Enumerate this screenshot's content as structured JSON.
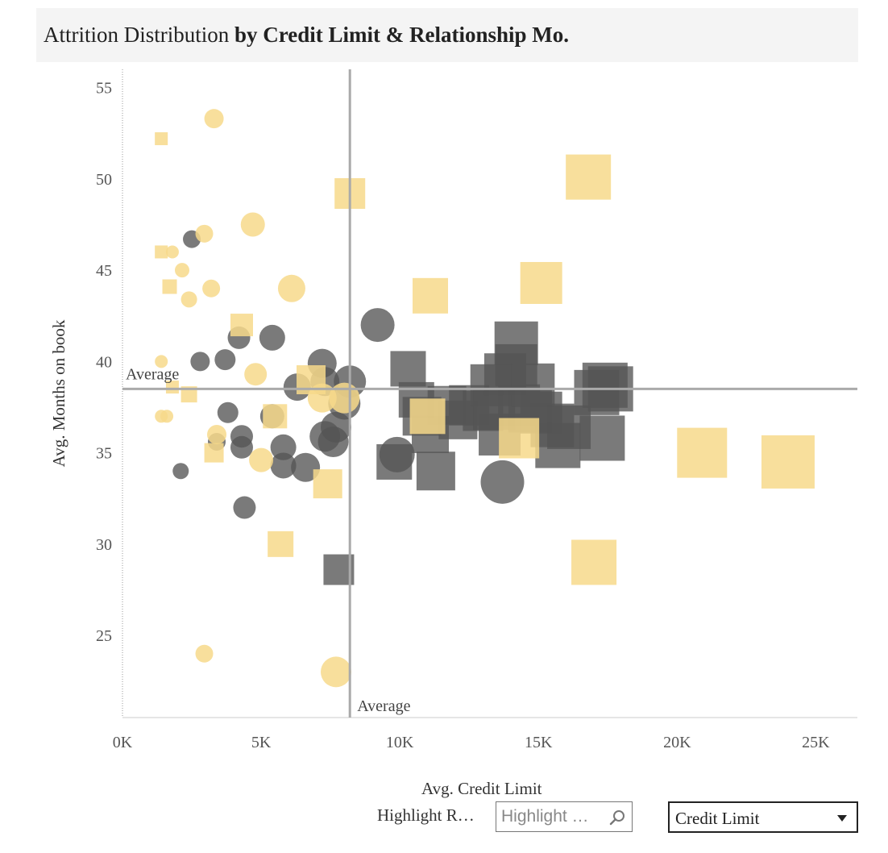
{
  "title": {
    "plain": "Attrition Distribution ",
    "bold": "by Credit Limit & Relationship Mo."
  },
  "controls": {
    "highlight_label": "Highlight R…",
    "highlight_placeholder": "Highlight …",
    "select_value": "Credit Limit"
  },
  "colors": {
    "existing": "#555555",
    "attrited": "#f7d98b",
    "reference": "#aaaaaa"
  },
  "chart_data": {
    "type": "scatter",
    "title": "Attrition Distribution by Credit Limit & Relationship Mo.",
    "xlabel": "Avg. Credit Limit",
    "ylabel": "Avg. Months on book",
    "xlim": [
      0,
      26500
    ],
    "ylim": [
      20.5,
      56
    ],
    "xticks": [
      0,
      5000,
      10000,
      15000,
      20000,
      25000
    ],
    "xtick_labels": [
      "0K",
      "5K",
      "10K",
      "15K",
      "20K",
      "25K"
    ],
    "yticks": [
      25,
      30,
      35,
      40,
      45,
      50,
      55
    ],
    "grid": false,
    "reference_lines": {
      "x": {
        "value": 8200,
        "label": "Average"
      },
      "y": {
        "value": 38.5,
        "label": "Average"
      }
    },
    "series": [
      {
        "color": "#555555",
        "points": [
          {
            "x": 2500,
            "y": 46.7,
            "size": 11,
            "shape": "circle"
          },
          {
            "x": 2800,
            "y": 40.0,
            "size": 12,
            "shape": "circle"
          },
          {
            "x": 3700,
            "y": 40.1,
            "size": 13,
            "shape": "circle"
          },
          {
            "x": 4200,
            "y": 41.3,
            "size": 14,
            "shape": "circle"
          },
          {
            "x": 5400,
            "y": 41.3,
            "size": 16,
            "shape": "circle"
          },
          {
            "x": 9200,
            "y": 42.0,
            "size": 21,
            "shape": "circle"
          },
          {
            "x": 3800,
            "y": 37.2,
            "size": 13,
            "shape": "circle"
          },
          {
            "x": 4300,
            "y": 35.9,
            "size": 14,
            "shape": "circle"
          },
          {
            "x": 4300,
            "y": 35.3,
            "size": 14,
            "shape": "circle"
          },
          {
            "x": 3400,
            "y": 35.6,
            "size": 11,
            "shape": "circle"
          },
          {
            "x": 2100,
            "y": 34.0,
            "size": 10,
            "shape": "circle"
          },
          {
            "x": 4400,
            "y": 32.0,
            "size": 14,
            "shape": "circle"
          },
          {
            "x": 5800,
            "y": 35.3,
            "size": 16,
            "shape": "circle"
          },
          {
            "x": 5800,
            "y": 34.3,
            "size": 16,
            "shape": "circle"
          },
          {
            "x": 6600,
            "y": 34.2,
            "size": 18,
            "shape": "circle"
          },
          {
            "x": 7300,
            "y": 35.9,
            "size": 19,
            "shape": "circle"
          },
          {
            "x": 7600,
            "y": 35.6,
            "size": 19,
            "shape": "circle"
          },
          {
            "x": 7700,
            "y": 36.4,
            "size": 19,
            "shape": "circle"
          },
          {
            "x": 6300,
            "y": 38.6,
            "size": 17,
            "shape": "circle"
          },
          {
            "x": 7200,
            "y": 39.9,
            "size": 18,
            "shape": "circle"
          },
          {
            "x": 7300,
            "y": 38.9,
            "size": 18,
            "shape": "circle"
          },
          {
            "x": 8000,
            "y": 37.7,
            "size": 20,
            "shape": "circle"
          },
          {
            "x": 8200,
            "y": 38.9,
            "size": 20,
            "shape": "circle"
          },
          {
            "x": 5400,
            "y": 37.0,
            "size": 15,
            "shape": "circle"
          },
          {
            "x": 9900,
            "y": 34.9,
            "size": 22,
            "shape": "circle"
          },
          {
            "x": 13700,
            "y": 33.4,
            "size": 27,
            "shape": "circle"
          },
          {
            "x": 10300,
            "y": 39.6,
            "size": 22,
            "shape": "square"
          },
          {
            "x": 10600,
            "y": 37.9,
            "size": 22,
            "shape": "square"
          },
          {
            "x": 10800,
            "y": 37.0,
            "size": 24,
            "shape": "square"
          },
          {
            "x": 11100,
            "y": 36.0,
            "size": 23,
            "shape": "square"
          },
          {
            "x": 11300,
            "y": 34.0,
            "size": 24,
            "shape": "square"
          },
          {
            "x": 9800,
            "y": 34.5,
            "size": 22,
            "shape": "square"
          },
          {
            "x": 11700,
            "y": 37.6,
            "size": 24,
            "shape": "square"
          },
          {
            "x": 12100,
            "y": 36.8,
            "size": 24,
            "shape": "square"
          },
          {
            "x": 12500,
            "y": 37.6,
            "size": 25,
            "shape": "square"
          },
          {
            "x": 13000,
            "y": 37.3,
            "size": 25,
            "shape": "square"
          },
          {
            "x": 13300,
            "y": 38.7,
            "size": 26,
            "shape": "square"
          },
          {
            "x": 13400,
            "y": 37.4,
            "size": 26,
            "shape": "square"
          },
          {
            "x": 13600,
            "y": 36.0,
            "size": 26,
            "shape": "square"
          },
          {
            "x": 13800,
            "y": 39.3,
            "size": 26,
            "shape": "square"
          },
          {
            "x": 14200,
            "y": 39.8,
            "size": 26,
            "shape": "square"
          },
          {
            "x": 14200,
            "y": 41.0,
            "size": 27,
            "shape": "square"
          },
          {
            "x": 14300,
            "y": 37.6,
            "size": 26,
            "shape": "square"
          },
          {
            "x": 14700,
            "y": 37.3,
            "size": 27,
            "shape": "square"
          },
          {
            "x": 14800,
            "y": 38.7,
            "size": 27,
            "shape": "square"
          },
          {
            "x": 15100,
            "y": 37.2,
            "size": 26,
            "shape": "square"
          },
          {
            "x": 15500,
            "y": 36.5,
            "size": 27,
            "shape": "square"
          },
          {
            "x": 15700,
            "y": 35.4,
            "size": 28,
            "shape": "square"
          },
          {
            "x": 16100,
            "y": 36.4,
            "size": 27,
            "shape": "square"
          },
          {
            "x": 17100,
            "y": 38.3,
            "size": 28,
            "shape": "square"
          },
          {
            "x": 17300,
            "y": 35.8,
            "size": 28,
            "shape": "square"
          },
          {
            "x": 17400,
            "y": 38.7,
            "size": 28,
            "shape": "square"
          },
          {
            "x": 17600,
            "y": 38.5,
            "size": 28,
            "shape": "square"
          },
          {
            "x": 7800,
            "y": 28.6,
            "size": 19,
            "shape": "square"
          }
        ]
      },
      {
        "color": "#f7d98b",
        "points": [
          {
            "x": 3300,
            "y": 53.3,
            "size": 12,
            "shape": "circle"
          },
          {
            "x": 1400,
            "y": 52.2,
            "size": 8,
            "shape": "square"
          },
          {
            "x": 8200,
            "y": 49.2,
            "size": 19,
            "shape": "square"
          },
          {
            "x": 16800,
            "y": 50.1,
            "size": 28,
            "shape": "square"
          },
          {
            "x": 4700,
            "y": 47.5,
            "size": 15,
            "shape": "circle"
          },
          {
            "x": 2950,
            "y": 47.0,
            "size": 11,
            "shape": "circle"
          },
          {
            "x": 1400,
            "y": 46.0,
            "size": 8,
            "shape": "square"
          },
          {
            "x": 1800,
            "y": 46.0,
            "size": 8,
            "shape": "circle"
          },
          {
            "x": 2150,
            "y": 45.0,
            "size": 9,
            "shape": "circle"
          },
          {
            "x": 1700,
            "y": 44.1,
            "size": 9,
            "shape": "square"
          },
          {
            "x": 3200,
            "y": 44.0,
            "size": 11,
            "shape": "circle"
          },
          {
            "x": 2400,
            "y": 43.4,
            "size": 10,
            "shape": "circle"
          },
          {
            "x": 6100,
            "y": 44.0,
            "size": 17,
            "shape": "circle"
          },
          {
            "x": 11100,
            "y": 43.6,
            "size": 22,
            "shape": "square"
          },
          {
            "x": 15100,
            "y": 44.3,
            "size": 26,
            "shape": "square"
          },
          {
            "x": 4300,
            "y": 42.0,
            "size": 14,
            "shape": "square"
          },
          {
            "x": 1400,
            "y": 40.0,
            "size": 8,
            "shape": "circle"
          },
          {
            "x": 4800,
            "y": 39.3,
            "size": 14,
            "shape": "circle"
          },
          {
            "x": 1800,
            "y": 38.6,
            "size": 8,
            "shape": "square"
          },
          {
            "x": 2400,
            "y": 38.2,
            "size": 10,
            "shape": "square"
          },
          {
            "x": 6800,
            "y": 39.0,
            "size": 18,
            "shape": "square"
          },
          {
            "x": 7200,
            "y": 38.0,
            "size": 18,
            "shape": "circle"
          },
          {
            "x": 8000,
            "y": 38.0,
            "size": 19,
            "shape": "circle"
          },
          {
            "x": 5500,
            "y": 37.0,
            "size": 15,
            "shape": "square"
          },
          {
            "x": 1400,
            "y": 37.0,
            "size": 8,
            "shape": "circle"
          },
          {
            "x": 1600,
            "y": 37.0,
            "size": 8,
            "shape": "circle"
          },
          {
            "x": 3400,
            "y": 36.0,
            "size": 12,
            "shape": "circle"
          },
          {
            "x": 3300,
            "y": 35.0,
            "size": 12,
            "shape": "square"
          },
          {
            "x": 5000,
            "y": 34.6,
            "size": 15,
            "shape": "circle"
          },
          {
            "x": 7400,
            "y": 33.3,
            "size": 18,
            "shape": "square"
          },
          {
            "x": 11000,
            "y": 37.0,
            "size": 22,
            "shape": "square"
          },
          {
            "x": 14300,
            "y": 35.8,
            "size": 25,
            "shape": "square"
          },
          {
            "x": 20900,
            "y": 35.0,
            "size": 31,
            "shape": "square"
          },
          {
            "x": 24000,
            "y": 34.5,
            "size": 33,
            "shape": "square"
          },
          {
            "x": 5700,
            "y": 30.0,
            "size": 16,
            "shape": "square"
          },
          {
            "x": 17000,
            "y": 29.0,
            "size": 28,
            "shape": "square"
          },
          {
            "x": 2950,
            "y": 24.0,
            "size": 11,
            "shape": "circle"
          },
          {
            "x": 7700,
            "y": 23.0,
            "size": 19,
            "shape": "circle"
          }
        ]
      }
    ]
  }
}
